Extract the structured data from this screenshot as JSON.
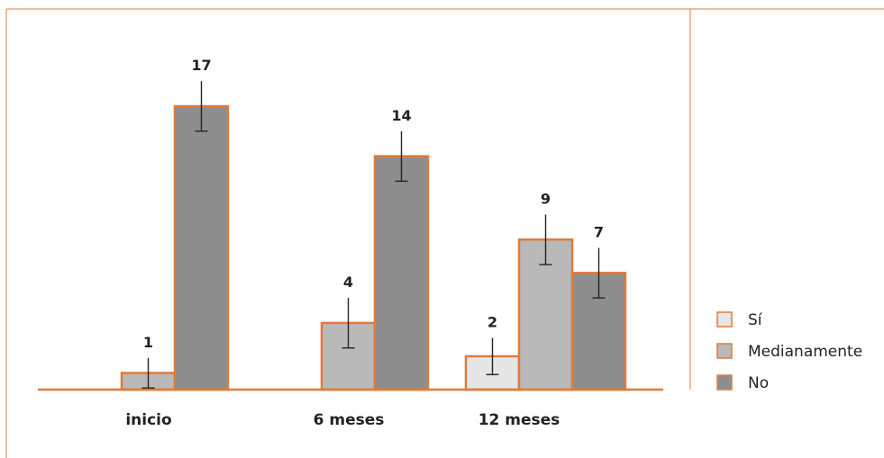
{
  "chart_data": {
    "type": "bar",
    "title": "",
    "xlabel": "",
    "ylabel": "",
    "categories": [
      "inicio",
      "6 meses",
      "12 meses"
    ],
    "series": [
      {
        "name": "Sí",
        "values": [
          0,
          0,
          2
        ],
        "error": [
          0,
          0,
          1.1
        ],
        "color": "#e6e6e6"
      },
      {
        "name": "Medianamente",
        "values": [
          1,
          4,
          9
        ],
        "error": [
          0.9,
          1.5,
          1.5
        ],
        "color": "#b9b9b9"
      },
      {
        "name": "No",
        "values": [
          17,
          14,
          7
        ],
        "error": [
          1.5,
          1.5,
          1.5
        ],
        "color": "#8e8e8e"
      }
    ],
    "labels": [
      {
        "series": 1,
        "category": 0,
        "text": "1"
      },
      {
        "series": 2,
        "category": 0,
        "text": "17"
      },
      {
        "series": 1,
        "category": 1,
        "text": "4"
      },
      {
        "series": 2,
        "category": 1,
        "text": "14"
      },
      {
        "series": 0,
        "category": 2,
        "text": "2"
      },
      {
        "series": 1,
        "category": 2,
        "text": "9"
      },
      {
        "series": 2,
        "category": 2,
        "text": "7"
      }
    ],
    "ylim": [
      0,
      20
    ],
    "grid": false,
    "legend": "bottom-right",
    "colors": {
      "frame": "#e07b39",
      "bar_edge": "#e07b39",
      "error_bar": "#222222"
    }
  }
}
